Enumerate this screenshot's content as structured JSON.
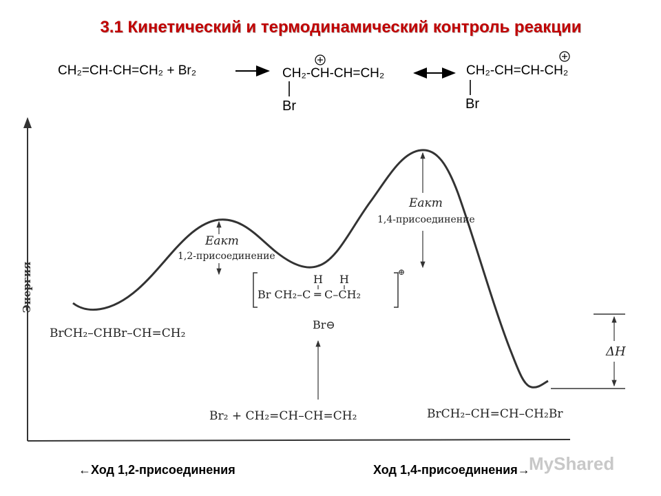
{
  "title": "3.1 Кинетический и термодинамический контроль реакции",
  "equation": {
    "reactants": "CH₂=CH-CH=CH₂ + Br₂",
    "cation1": "CH₂-CH-CH=CH₂",
    "cation2": "CH₂-CH=CH-CH₂",
    "br": "Br",
    "plus_charge": "+"
  },
  "diagram": {
    "y_axis_label": "Энергия",
    "ea_label": "Eакт",
    "ea12_caption": "1,2-присоединение",
    "ea14_caption": "1,4-присоединение",
    "delta_h": "ΔH",
    "product12": "BrCH₂–CHBr–CH=CH₂",
    "product14": "BrCH₂–CH=CH–CH₂Br",
    "reactants_bottom": "Br₂ + CH₂=CH–CH=CH₂",
    "intermediate_h1": "H",
    "intermediate_h2": "H",
    "intermediate_formula": "Br CH₂–C ═ C–CH₂",
    "intermediate_charge": "⊕",
    "bromide": "Br⊖"
  },
  "footer": {
    "left": "←Ход 1,2-присоединения",
    "right": "Ход 1,4-присоединения→"
  },
  "watermark": "MyShared"
}
